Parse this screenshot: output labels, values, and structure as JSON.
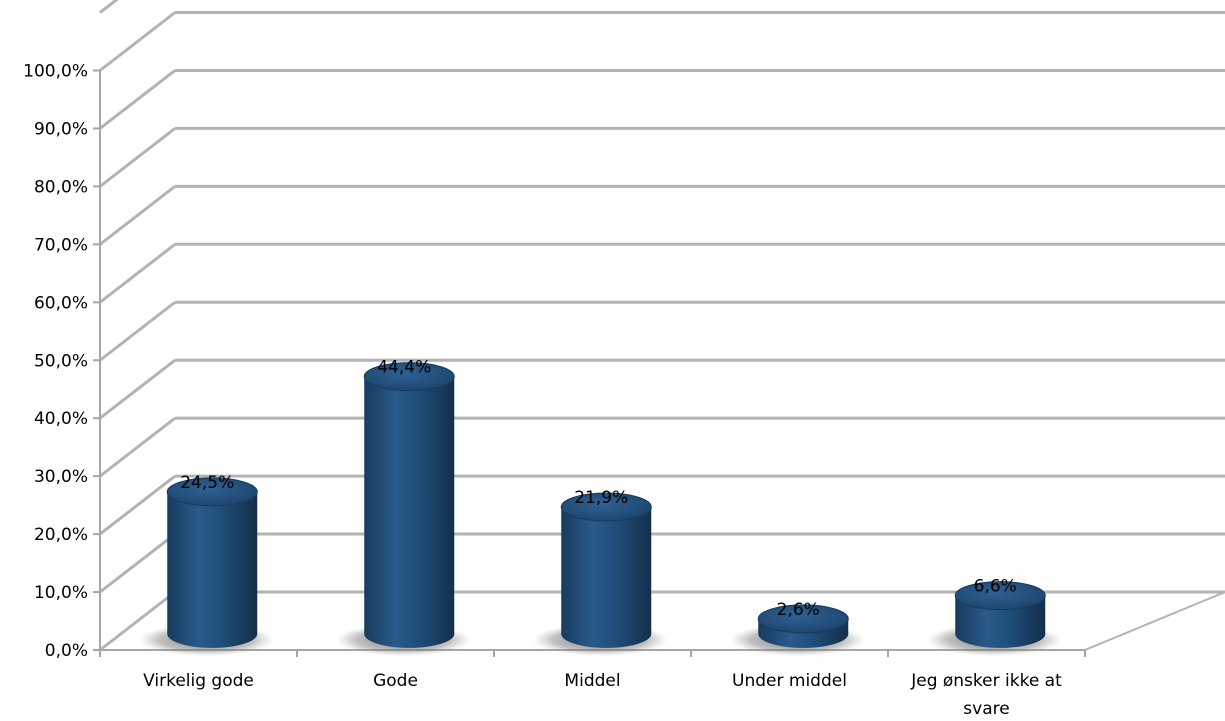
{
  "chart_data": {
    "type": "bar",
    "style": "3d-cylinder",
    "categories": [
      "Virkelig gode",
      "Gode",
      "Middel",
      "Under middel",
      "Jeg ønsker ikke at svare"
    ],
    "category_lines": [
      [
        "Virkelig gode"
      ],
      [
        "Gode"
      ],
      [
        "Middel"
      ],
      [
        "Under middel"
      ],
      [
        "Jeg ønsker ikke at",
        "svare"
      ]
    ],
    "values": [
      24.5,
      44.4,
      21.9,
      2.6,
      6.6
    ],
    "data_labels": [
      "24,5%",
      "44,4%",
      "21,9%",
      "2,6%",
      "6,6%"
    ],
    "ylim": [
      0,
      100
    ],
    "y_ticks": [
      0,
      10,
      20,
      30,
      40,
      50,
      60,
      70,
      80,
      90,
      100
    ],
    "y_tick_labels": [
      "0,0%",
      "10,0%",
      "20,0%",
      "30,0%",
      "40,0%",
      "50,0%",
      "60,0%",
      "70,0%",
      "80,0%",
      "90,0%",
      "100,0%"
    ],
    "title": "",
    "xlabel": "",
    "ylabel": "",
    "grid": true,
    "legend": "none",
    "colors": {
      "bar_main": "#1f4e79",
      "bar_light": "#3d6fa3",
      "bar_dark": "#173c5e",
      "grid": "#b3b3b3",
      "axis": "#a6a6a6"
    }
  }
}
